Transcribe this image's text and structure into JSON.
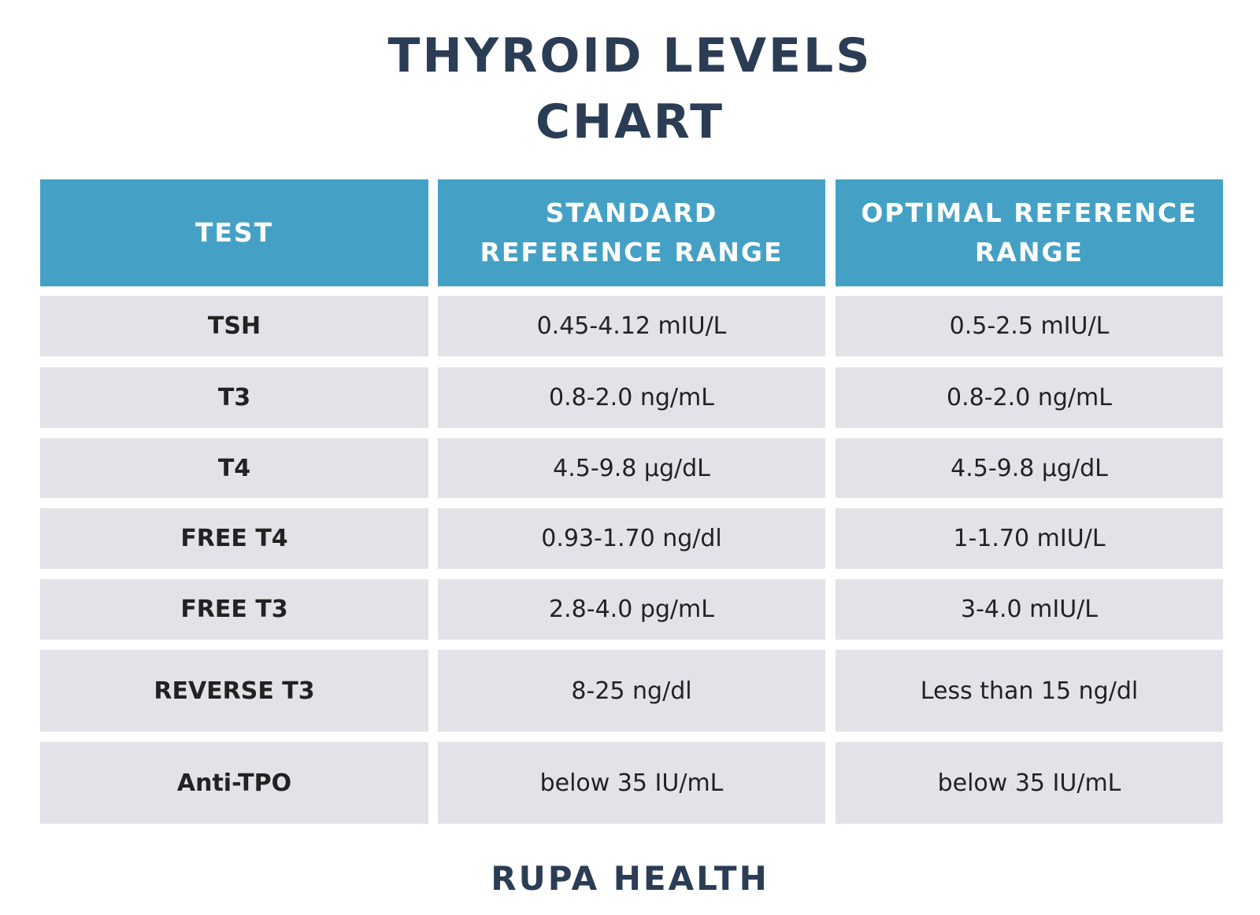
{
  "header": {
    "title_lines": [
      "THYROID LEVELS",
      "CHART"
    ]
  },
  "table": {
    "columns": [
      "TEST",
      "STANDARD REFERENCE RANGE",
      "OPTIMAL REFERENCE RANGE"
    ],
    "rows": [
      [
        "TSH",
        "0.45-4.12 mIU/L",
        "0.5-2.5 mIU/L"
      ],
      [
        "T3",
        "0.8-2.0 ng/mL",
        "0.8-2.0 ng/mL"
      ],
      [
        "T4",
        "4.5-9.8 µg/dL",
        "4.5-9.8 µg/dL"
      ],
      [
        "FREE T4",
        "0.93-1.70 ng/dl",
        "1-1.70 mIU/L"
      ],
      [
        "FREE T3",
        "2.8-4.0 pg/mL",
        "3-4.0 mIU/L"
      ],
      [
        "REVERSE T3",
        "8-25 ng/dl",
        "Less than 15 ng/dl"
      ],
      [
        "Anti-TPO",
        "below 35 IU/mL",
        "below 35 IU/mL"
      ]
    ]
  },
  "footer": {
    "brand": "RUPA HEALTH"
  }
}
